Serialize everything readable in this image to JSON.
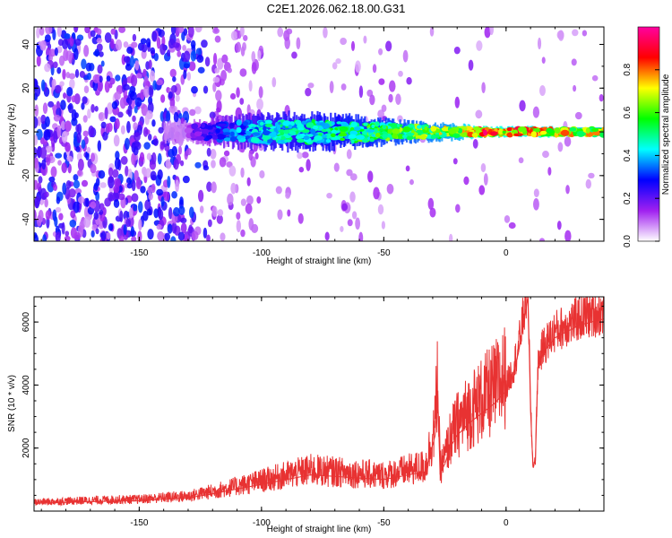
{
  "figure_title": "C2E1.2026.062.18.00.G31",
  "colors": {
    "snr_line": "#e83232",
    "axis": "#000000"
  },
  "chart_data": [
    {
      "type": "heatmap",
      "title": "C2E1.2026.062.18.00.G31",
      "xlabel": "Height of straight line (km)",
      "ylabel": "Frequency (Hz)",
      "xlim": [
        -193,
        40
      ],
      "ylim": [
        -50,
        48
      ],
      "xticks": [
        -150,
        -100,
        -50,
        0
      ],
      "yticks": [
        -40,
        -20,
        0,
        20,
        40
      ],
      "colorbar": {
        "label": "Normalized spectral amplitude",
        "range": [
          0.0,
          1.0
        ],
        "ticks": [
          0.0,
          0.2,
          0.4,
          0.6,
          0.8
        ],
        "tick_labels": [
          "0.0",
          "0.2",
          "0.4",
          "0.6",
          "0.8"
        ],
        "colormap": [
          "#ffffff",
          "#a020f0",
          "#0000ff",
          "#00ffff",
          "#00ff00",
          "#ffff00",
          "#ff0000",
          "#ff00a0"
        ]
      },
      "signal_band": {
        "center_freq_hz": 0,
        "description_points": [
          {
            "height_km": -130,
            "half_width_hz": 4,
            "amplitude": 0.15
          },
          {
            "height_km": -120,
            "half_width_hz": 5,
            "amplitude": 0.3
          },
          {
            "height_km": -100,
            "half_width_hz": 7,
            "amplitude": 0.45
          },
          {
            "height_km": -80,
            "half_width_hz": 7,
            "amplitude": 0.5
          },
          {
            "height_km": -60,
            "half_width_hz": 6,
            "amplitude": 0.55
          },
          {
            "height_km": -40,
            "half_width_hz": 4,
            "amplitude": 0.6
          },
          {
            "height_km": -20,
            "half_width_hz": 3,
            "amplitude": 0.7
          },
          {
            "height_km": -10,
            "half_width_hz": 2,
            "amplitude": 0.85
          },
          {
            "height_km": 0,
            "half_width_hz": 2,
            "amplitude": 0.8
          },
          {
            "height_km": 10,
            "half_width_hz": 2,
            "amplitude": 0.8
          },
          {
            "height_km": 40,
            "half_width_hz": 2,
            "amplitude": 0.7
          }
        ]
      }
    },
    {
      "type": "line",
      "xlabel": "Height of straight line (km)",
      "ylabel": "SNR (10 * v/v)",
      "xlim": [
        -193,
        40
      ],
      "ylim": [
        0,
        6800
      ],
      "xticks": [
        -150,
        -100,
        -50,
        0
      ],
      "yticks": [
        2000,
        4000,
        6000
      ],
      "series": [
        {
          "name": "SNR",
          "x": [
            -193,
            -180,
            -170,
            -160,
            -150,
            -140,
            -130,
            -120,
            -110,
            -100,
            -90,
            -80,
            -70,
            -60,
            -50,
            -40,
            -33,
            -29,
            -28,
            -27,
            -25,
            -23,
            -20,
            -15,
            -10,
            -5,
            0,
            3,
            5,
            8,
            9,
            10,
            11,
            12,
            13,
            15,
            20,
            25,
            30,
            35,
            40
          ],
          "y": [
            250,
            280,
            300,
            320,
            330,
            380,
            420,
            550,
            700,
            850,
            1000,
            1150,
            1100,
            1050,
            1000,
            1150,
            1250,
            2400,
            3800,
            1200,
            1500,
            2000,
            2400,
            2800,
            3100,
            3400,
            3800,
            4400,
            5000,
            6400,
            6750,
            3200,
            1400,
            1600,
            4500,
            5000,
            5500,
            5700,
            5900,
            6000,
            6100
          ]
        }
      ]
    }
  ]
}
